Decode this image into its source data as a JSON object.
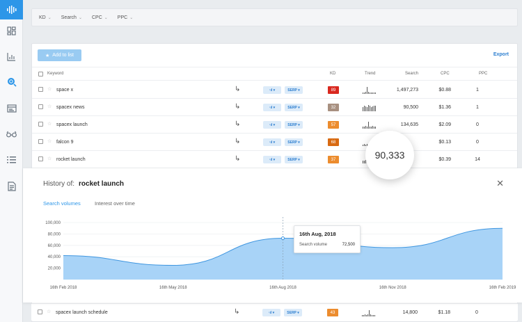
{
  "sidebar": {
    "items": [
      {
        "icon": "logo-bars-icon",
        "active": true
      },
      {
        "icon": "dashboard-icon"
      },
      {
        "icon": "bar-chart-icon"
      },
      {
        "icon": "keyword-search-icon",
        "active": true
      },
      {
        "icon": "browser-window-icon"
      },
      {
        "icon": "glasses-icon"
      },
      {
        "icon": "list-icon"
      },
      {
        "icon": "document-icon"
      }
    ]
  },
  "filters": [
    {
      "label": "KD"
    },
    {
      "label": "Search"
    },
    {
      "label": "CPC"
    },
    {
      "label": "PPC"
    }
  ],
  "toolbar": {
    "add_label": "Add to list",
    "export_label": "Export"
  },
  "table": {
    "headers": {
      "keyword": "Keyword",
      "kd": "KD",
      "trend": "Trend",
      "search": "Search",
      "cpc": "CPC",
      "ppc": "PPC"
    },
    "rows": [
      {
        "keyword": "space x",
        "kd": "89",
        "kd_color": "#d9281f",
        "search": "1,497,273",
        "cpc": "$0.88",
        "ppc": "1",
        "trend": [
          2,
          2,
          3,
          10,
          3,
          2,
          2,
          2,
          2,
          2
        ]
      },
      {
        "keyword": "spacex news",
        "kd": "32",
        "kd_color": "#a89080",
        "search": "90,500",
        "cpc": "$1.36",
        "ppc": "1",
        "trend": [
          6,
          8,
          7,
          6,
          9,
          8,
          6,
          7,
          8,
          8
        ]
      },
      {
        "keyword": "spacex launch",
        "kd": "57",
        "kd_color": "#ec8c2e",
        "search": "134,635",
        "cpc": "$2.09",
        "ppc": "0",
        "trend": [
          3,
          3,
          4,
          3,
          10,
          3,
          3,
          4,
          3,
          3
        ]
      },
      {
        "keyword": "falcon 9",
        "kd": "68",
        "kd_color": "#d86a12",
        "search": "",
        "cpc": "$0.13",
        "ppc": "0",
        "trend": [
          2,
          3,
          2,
          3,
          2,
          5,
          3,
          2,
          3,
          9
        ]
      },
      {
        "keyword": "rocket launch",
        "kd": "37",
        "kd_color": "#ec8c2e",
        "search": "",
        "cpc": "$0.39",
        "ppc": "14",
        "trend": [
          4,
          4,
          5,
          4,
          5,
          6,
          5,
          5,
          8,
          6
        ]
      }
    ],
    "pill_graph": "·ıl ▾",
    "pill_serp": "SERP ▾"
  },
  "bubble_value": "90,333",
  "history": {
    "label": "History of:",
    "keyword": "rocket launch",
    "tabs": [
      "Search volumes",
      "Interest over time"
    ],
    "tooltip": {
      "date": "16th Aug, 2018",
      "label": "Search volume",
      "value": "72,500"
    }
  },
  "chart_data": {
    "type": "area",
    "title": "",
    "xlabel": "",
    "ylabel": "",
    "ylim": [
      0,
      100000
    ],
    "yticks": [
      "100,000",
      "80,000",
      "60,000",
      "40,000",
      "20,000"
    ],
    "xticks": [
      "16th Feb 2018",
      "16th May 2018",
      "16th Aug 2018",
      "16th Nov 2018",
      "16th Feb 2019"
    ],
    "x": [
      "16th Feb 2018",
      "16th May 2018",
      "16th Aug 2018",
      "16th Nov 2018",
      "16th Feb 2019"
    ],
    "values": [
      42000,
      25000,
      72500,
      56000,
      90000
    ],
    "fill_color": "#a8d3f7",
    "line_color": "#3f96e0",
    "grid": true
  },
  "last_row": {
    "keyword": "spacex launch schedule",
    "kd": "43",
    "kd_color": "#ec8c2e",
    "search": "14,800",
    "cpc": "$1.18",
    "ppc": "0",
    "trend": [
      2,
      2,
      3,
      2,
      3,
      9,
      3,
      2,
      2,
      2
    ]
  }
}
